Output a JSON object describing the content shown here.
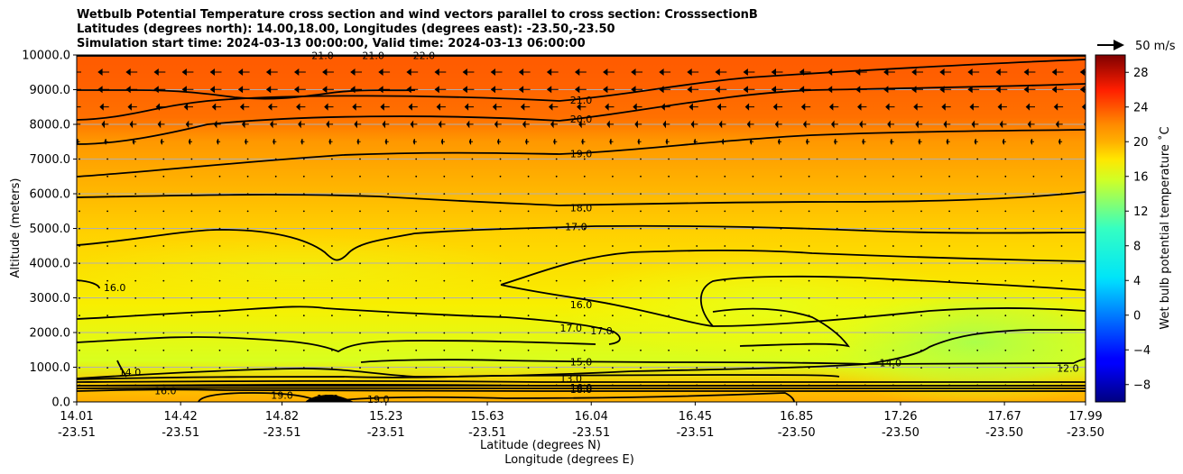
{
  "title_lines": [
    "Wetbulb Potential Temperature cross section and wind vectors parallel to cross section: CrosssectionB",
    "Latitudes (degrees north): 14.00,18.00, Longitudes (degrees east): -23.50,-23.50",
    "Simulation start time: 2024-03-13 00:00:00, Valid time: 2024-03-13 06:00:00"
  ],
  "chart_data": {
    "type": "contour",
    "subtype": "filled contour cross section with contour lines and wind vectors",
    "ylabel": "Altitude (meters)",
    "xlabel_lat": "Latitude (degrees N)",
    "xlabel_lon": "Longitude (degrees E)",
    "ylim": [
      0,
      10000
    ],
    "y_ticks": [
      "0.0",
      "1000.0",
      "2000.0",
      "3000.0",
      "4000.0",
      "5000.0",
      "6000.0",
      "7000.0",
      "8000.0",
      "9000.0",
      "10000.0"
    ],
    "x_lat_ticks": [
      "14.01",
      "14.42",
      "14.82",
      "15.23",
      "15.63",
      "16.04",
      "16.45",
      "16.85",
      "17.26",
      "17.67",
      "17.99"
    ],
    "x_lon_ticks": [
      "-23.51",
      "-23.51",
      "-23.51",
      "-23.51",
      "-23.51",
      "-23.51",
      "-23.51",
      "-23.50",
      "-23.50",
      "-23.50",
      "-23.50"
    ],
    "grid": "horizontal",
    "colorbar": {
      "label": "Wet bulb potential temperature ˚C",
      "colormap": "jet",
      "range": [
        -10,
        30
      ],
      "ticks": [
        "28",
        "24",
        "20",
        "16",
        "12",
        "8",
        "4",
        "0",
        "−4",
        "−8"
      ]
    },
    "quiver_key": "50 m/s",
    "contour_labels": [
      {
        "text": "21.0",
        "x": 16.0,
        "y": 8700
      },
      {
        "text": "20.0",
        "x": 16.0,
        "y": 8150
      },
      {
        "text": "19.0",
        "x": 16.0,
        "y": 7150
      },
      {
        "text": "18.0",
        "x": 16.0,
        "y": 5600
      },
      {
        "text": "17.0",
        "x": 15.98,
        "y": 5050
      },
      {
        "text": "16.0",
        "x": 16.0,
        "y": 2800
      },
      {
        "text": "17.0",
        "x": 15.96,
        "y": 2130
      },
      {
        "text": "17.0",
        "x": 16.08,
        "y": 2050
      },
      {
        "text": "15.0",
        "x": 16.0,
        "y": 1160
      },
      {
        "text": "14.0",
        "x": 17.22,
        "y": 1130
      },
      {
        "text": "13.0",
        "x": 15.96,
        "y": 680
      },
      {
        "text": "16.0",
        "x": 16.0,
        "y": 420
      },
      {
        "text": "18.0",
        "x": 16.0,
        "y": 360
      },
      {
        "text": "16.0",
        "x": 14.16,
        "y": 3300
      },
      {
        "text": "14.0",
        "x": 14.22,
        "y": 860
      },
      {
        "text": "16.0",
        "x": 14.36,
        "y": 320
      },
      {
        "text": "19.0",
        "x": 14.82,
        "y": 190
      },
      {
        "text": "18.0",
        "x": 15.0,
        "y": 110
      },
      {
        "text": "19.0",
        "x": 15.2,
        "y": 80
      },
      {
        "text": "12.0",
        "x": 17.92,
        "y": 980
      },
      {
        "text": "21.0",
        "x": 14.98,
        "y": 9990
      },
      {
        "text": "21.0",
        "x": 15.18,
        "y": 9990
      },
      {
        "text": "22.0",
        "x": 15.38,
        "y": 9990
      }
    ]
  }
}
